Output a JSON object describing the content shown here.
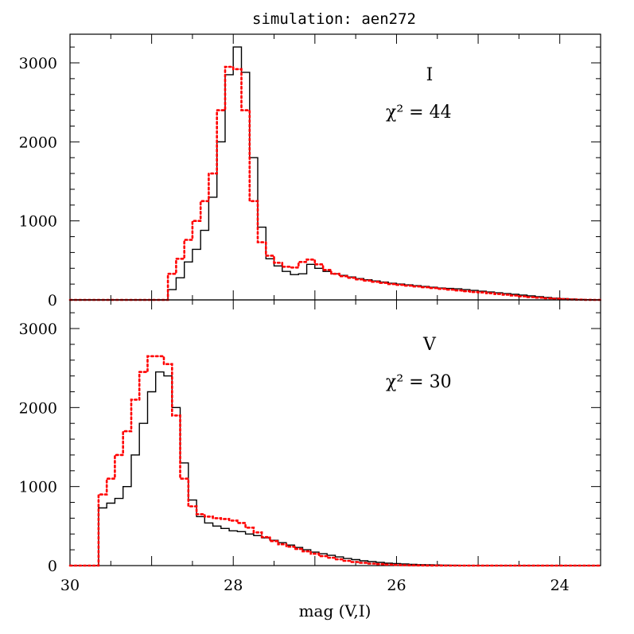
{
  "chart_data": {
    "type": "line",
    "title": "simulation: aen272",
    "xlabel": "mag (V,I)",
    "xlim": [
      30,
      23.5
    ],
    "x_ticks": [
      "30",
      "28",
      "26",
      "24"
    ],
    "y_ticks": [
      "0",
      "1000",
      "2000",
      "3000"
    ],
    "grid": false,
    "bin_width": 0.1,
    "colors": {
      "observed": "#000000",
      "model": "#ff0000"
    },
    "panels": [
      {
        "band": "I",
        "chi2_label": "χ² = 44",
        "ylim": [
          0,
          3000
        ],
        "series": [
          {
            "style": "solid",
            "x": [
              31.0,
              28.8,
              28.7,
              28.6,
              28.5,
              28.4,
              28.3,
              28.2,
              28.1,
              28.0,
              27.9,
              27.8,
              27.7,
              27.6,
              27.5,
              27.4,
              27.3,
              27.2,
              27.1,
              27.0,
              26.9,
              26.8,
              26.7,
              26.6,
              26.5,
              26.4,
              26.3,
              26.2,
              26.1,
              26.0,
              25.9,
              25.8,
              25.7,
              25.6,
              25.5,
              25.4,
              25.3,
              25.2,
              25.1,
              25.0,
              24.9,
              24.8,
              24.7,
              24.6,
              24.5,
              24.4,
              24.3,
              24.2,
              24.1,
              24.0,
              23.9,
              23.8,
              23.7,
              23.6
            ],
            "values": [
              0,
              130,
              280,
              480,
              640,
              880,
              1300,
              2000,
              2850,
              3200,
              2880,
              1800,
              920,
              520,
              430,
              360,
              320,
              330,
              450,
              400,
              360,
              330,
              310,
              290,
              270,
              255,
              240,
              225,
              210,
              200,
              190,
              180,
              170,
              160,
              150,
              145,
              140,
              130,
              120,
              110,
              100,
              90,
              80,
              70,
              60,
              50,
              40,
              30,
              22,
              15,
              10,
              6,
              3,
              0
            ]
          },
          {
            "style": "dotted",
            "x": [
              31.0,
              28.8,
              28.7,
              28.6,
              28.5,
              28.4,
              28.3,
              28.2,
              28.1,
              28.0,
              27.9,
              27.8,
              27.7,
              27.6,
              27.5,
              27.4,
              27.3,
              27.2,
              27.1,
              27.0,
              26.9,
              26.8,
              26.7,
              26.6,
              26.5,
              26.4,
              26.3,
              26.2,
              26.1,
              26.0,
              25.9,
              25.8,
              25.7,
              25.6,
              25.5,
              25.4,
              25.3,
              25.2,
              25.1,
              25.0,
              24.9,
              24.8,
              24.7,
              24.6,
              24.5,
              24.4,
              24.3,
              24.2,
              24.1,
              24.0,
              23.9,
              23.8,
              23.7,
              23.6
            ],
            "values": [
              0,
              330,
              520,
              760,
              1000,
              1250,
              1600,
              2400,
              2950,
              2920,
              2400,
              1250,
              730,
              560,
              470,
              420,
              410,
              480,
              510,
              450,
              380,
              330,
              300,
              280,
              260,
              245,
              230,
              215,
              200,
              190,
              180,
              170,
              160,
              150,
              140,
              130,
              120,
              110,
              100,
              95,
              85,
              75,
              65,
              55,
              45,
              35,
              28,
              20,
              14,
              9,
              5,
              3,
              1,
              0
            ]
          }
        ]
      },
      {
        "band": "V",
        "chi2_label": "χ² = 30",
        "ylim": [
          0,
          3000
        ],
        "series": [
          {
            "style": "solid",
            "x": [
              31.0,
              29.65,
              29.55,
              29.45,
              29.35,
              29.25,
              29.15,
              29.05,
              28.95,
              28.85,
              28.75,
              28.65,
              28.55,
              28.45,
              28.35,
              28.25,
              28.15,
              28.05,
              27.95,
              27.85,
              27.75,
              27.65,
              27.55,
              27.45,
              27.35,
              27.25,
              27.15,
              27.05,
              26.95,
              26.85,
              26.75,
              26.65,
              26.55,
              26.45,
              26.35,
              26.25,
              26.15,
              26.05,
              25.95,
              25.85,
              25.75,
              25.65,
              25.55,
              25.45,
              25.35,
              25.25,
              25.15,
              25.05,
              24.95,
              24.85
            ],
            "values": [
              0,
              730,
              790,
              850,
              1000,
              1400,
              1800,
              2200,
              2450,
              2400,
              2000,
              1300,
              830,
              620,
              540,
              500,
              470,
              440,
              430,
              400,
              380,
              350,
              320,
              290,
              260,
              230,
              200,
              170,
              150,
              130,
              110,
              90,
              75,
              60,
              50,
              40,
              30,
              25,
              20,
              15,
              12,
              10,
              8,
              6,
              4,
              3,
              2,
              1,
              0,
              0
            ]
          },
          {
            "style": "dotted",
            "x": [
              31.0,
              29.65,
              29.55,
              29.45,
              29.35,
              29.25,
              29.15,
              29.05,
              28.95,
              28.85,
              28.75,
              28.65,
              28.55,
              28.45,
              28.35,
              28.25,
              28.15,
              28.05,
              27.95,
              27.85,
              27.75,
              27.65,
              27.55,
              27.45,
              27.35,
              27.25,
              27.15,
              27.05,
              26.95,
              26.85,
              26.75,
              26.65,
              26.55,
              26.45,
              26.35,
              26.25,
              26.15,
              26.05,
              25.95,
              25.85,
              25.75,
              25.65,
              25.55,
              25.45,
              25.35,
              25.25,
              25.15,
              25.05,
              24.95,
              24.85
            ],
            "values": [
              0,
              900,
              1100,
              1400,
              1700,
              2100,
              2450,
              2650,
              2650,
              2550,
              1900,
              1100,
              750,
              650,
              620,
              600,
              590,
              570,
              540,
              480,
              420,
              360,
              310,
              270,
              240,
              210,
              180,
              150,
              120,
              100,
              80,
              60,
              45,
              35,
              25,
              18,
              12,
              8,
              5,
              3,
              2,
              1,
              1,
              0,
              0,
              0,
              0,
              0,
              0,
              0
            ]
          }
        ]
      }
    ]
  }
}
